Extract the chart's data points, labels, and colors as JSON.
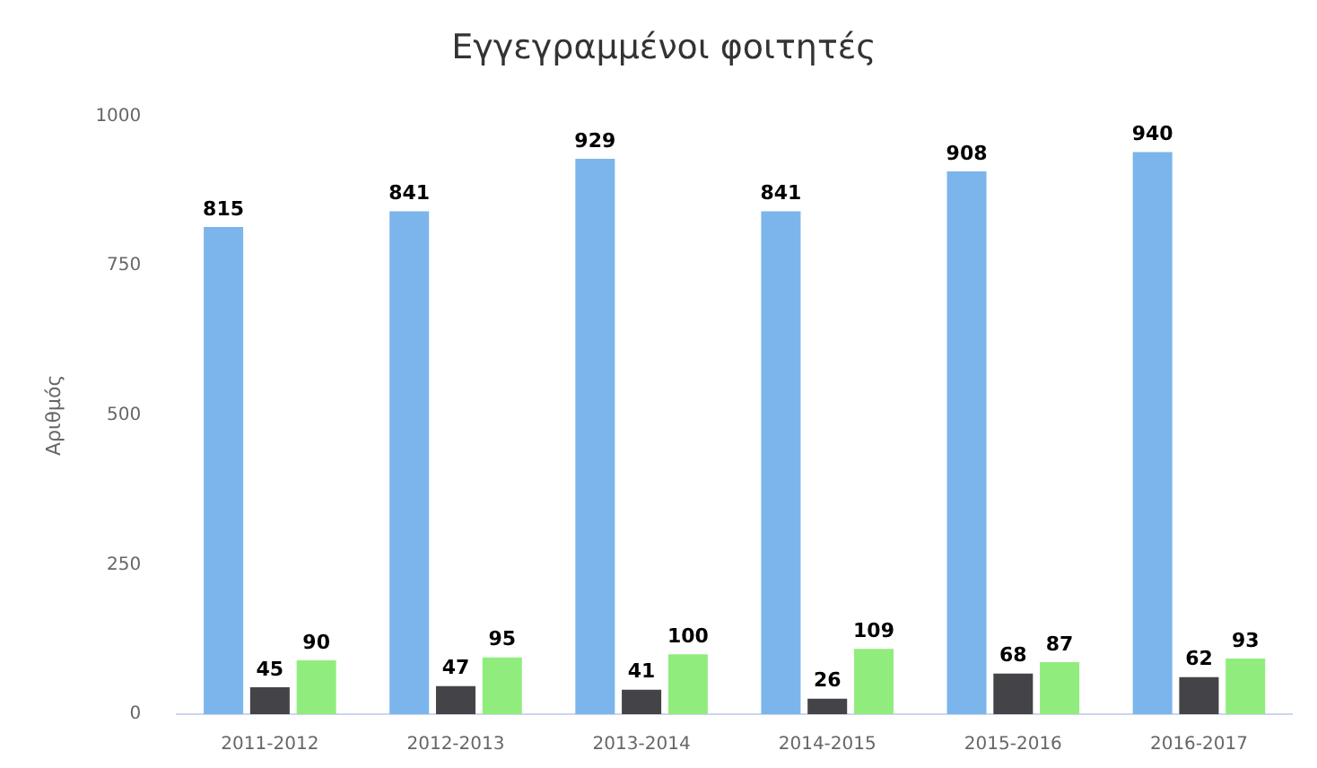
{
  "chart_data": {
    "type": "bar",
    "title": "Εγγεγραμμένοι φοιτητές",
    "ylabel": "Αριθμός",
    "categories": [
      "2011-2012",
      "2012-2013",
      "2013-2014",
      "2014-2015",
      "2015-2016",
      "2016-2017"
    ],
    "series": [
      {
        "color": "#7cb5ec",
        "values": [
          815,
          841,
          929,
          841,
          908,
          940
        ]
      },
      {
        "color": "#434348",
        "values": [
          45,
          47,
          41,
          26,
          68,
          62
        ]
      },
      {
        "color": "#90ed7d",
        "values": [
          90,
          95,
          100,
          109,
          87,
          93
        ]
      }
    ],
    "ylim": [
      0,
      1000
    ],
    "yticks": [
      0,
      250,
      500,
      750,
      1000
    ],
    "grid": false,
    "legend": false,
    "data_labels": true
  }
}
